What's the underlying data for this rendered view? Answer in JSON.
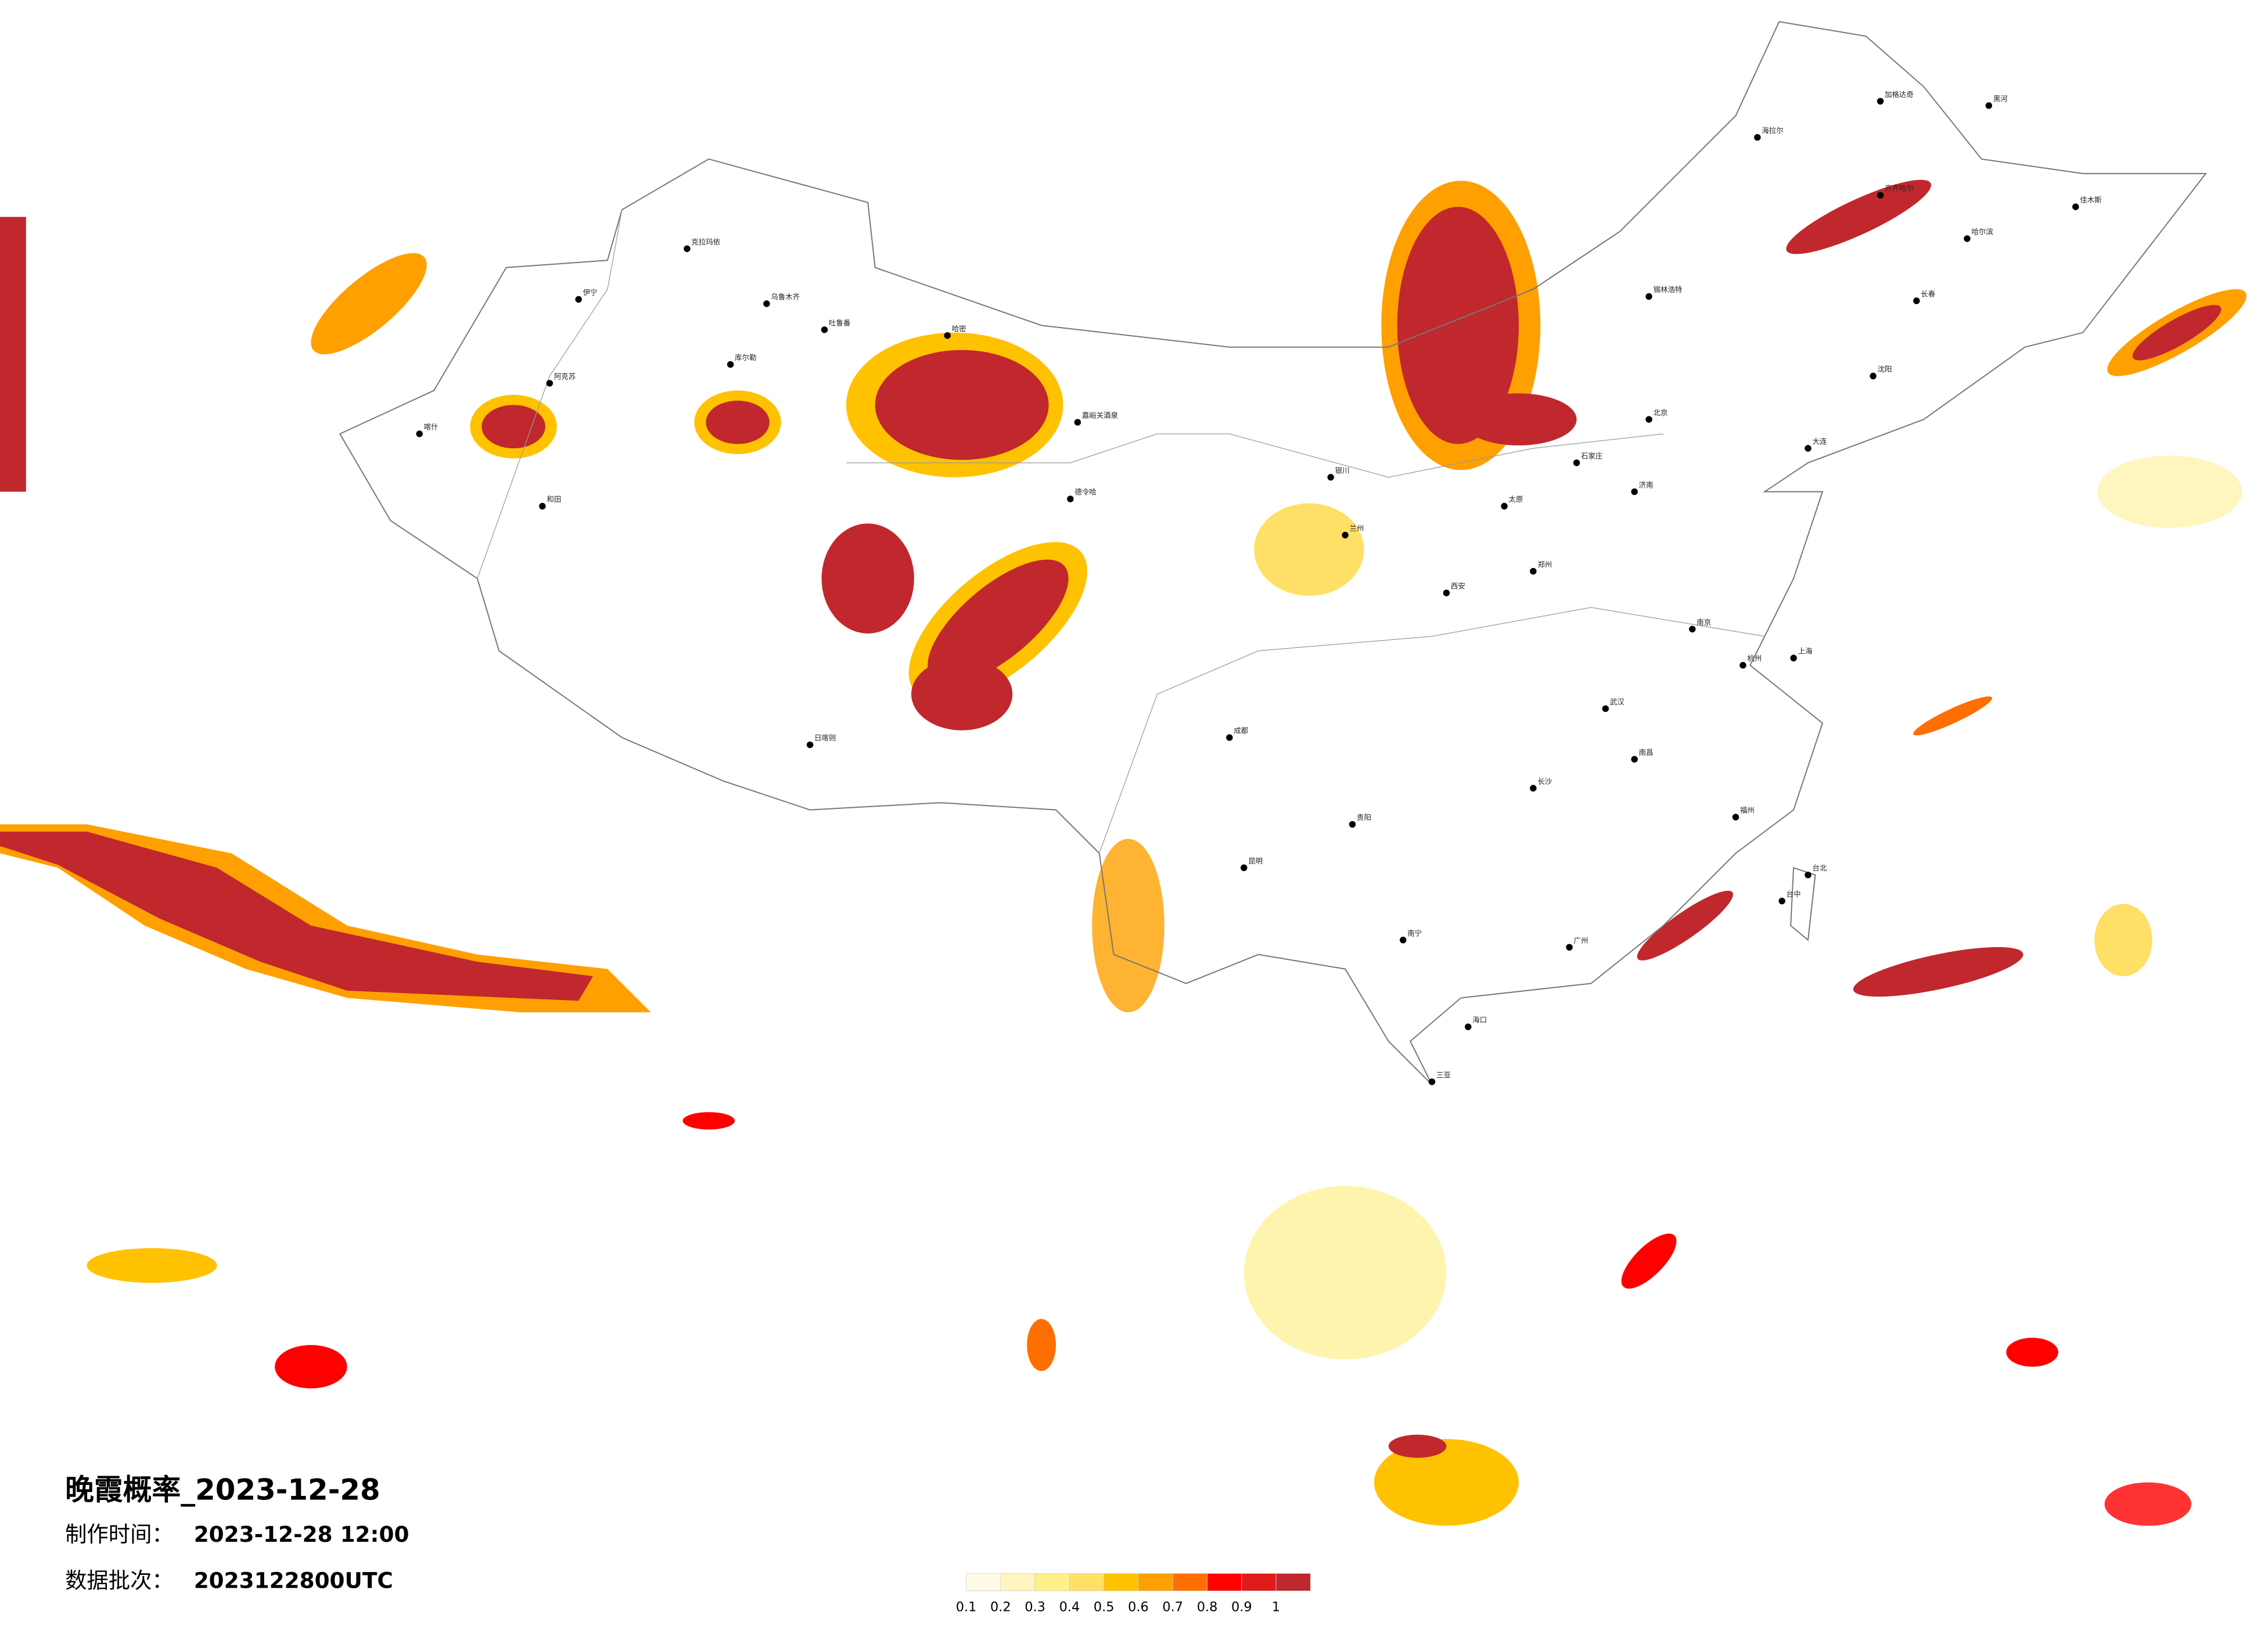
{
  "title": "晚霞概率_2023-12-28",
  "production_time": {
    "label": "制作时间：",
    "value": "2023-12-28 12:00"
  },
  "data_batch": {
    "label": "数据批次：",
    "value": "2023122800UTC"
  },
  "legend": {
    "colors": [
      "#fffbe6",
      "#fff5bf",
      "#fff08a",
      "#ffe066",
      "#ffc200",
      "#ffa000",
      "#ff6e00",
      "#ff0000",
      "#e01a1a",
      "#c0282d"
    ],
    "ticks": [
      0.1,
      0.2,
      0.3,
      0.4,
      0.5,
      0.6,
      0.7,
      0.8,
      0.9,
      1
    ]
  },
  "cities": [
    "北京",
    "上海",
    "广州",
    "成都",
    "西安",
    "武汉",
    "哈尔滨",
    "乌鲁木齐",
    "日喀则",
    "和田",
    "喀什",
    "克拉玛依",
    "伊宁",
    "库尔勒",
    "阿克苏",
    "哈密",
    "吐鲁番",
    "嘉峪关酒泉",
    "德令哈",
    "海拉尔",
    "加格达奇",
    "黑河",
    "锡林浩特",
    "齐齐哈尔",
    "佳木斯",
    "长春",
    "沈阳",
    "大连",
    "海口",
    "三亚",
    "台北",
    "台中",
    "南宁",
    "昆明",
    "贵阳",
    "兰州",
    "银川",
    "郑州",
    "长沙",
    "南昌",
    "福州",
    "杭州",
    "南京",
    "济南",
    "太原",
    "石家庄"
  ]
}
